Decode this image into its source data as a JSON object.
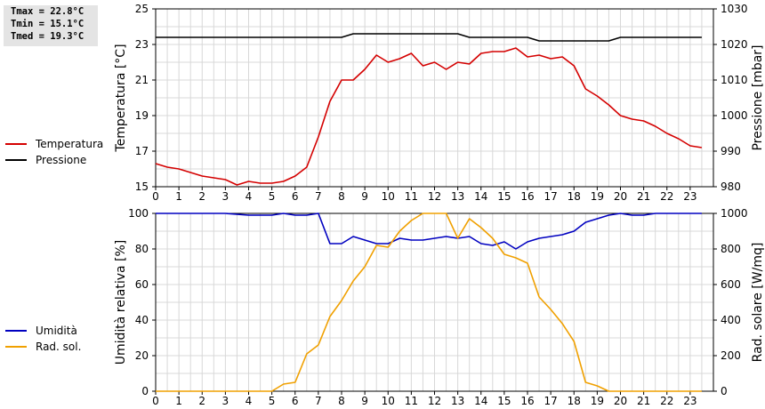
{
  "stats": {
    "tmax": "Tmax = 22.8°C",
    "tmin": "Tmin = 15.1°C",
    "tmed": "Tmed = 19.3°C"
  },
  "legend_top": [
    {
      "label": "Temperatura",
      "color": "#d40000"
    },
    {
      "label": "Pressione",
      "color": "#000000"
    }
  ],
  "legend_bottom": [
    {
      "label": "Umidità",
      "color": "#0000c0"
    },
    {
      "label": "Rad. sol.",
      "color": "#f0a000"
    }
  ],
  "chart_data": [
    {
      "type": "line",
      "xlim": [
        0,
        24
      ],
      "x_ticks": [
        0,
        1,
        2,
        3,
        4,
        5,
        6,
        7,
        8,
        9,
        10,
        11,
        12,
        13,
        14,
        15,
        16,
        17,
        18,
        19,
        20,
        21,
        22,
        23
      ],
      "grid": true,
      "ylabel_left": "Temperatura [°C]",
      "ylim_left": [
        15,
        25
      ],
      "yticks_left": [
        15,
        17,
        19,
        21,
        23,
        25
      ],
      "ylabel_right": "Pressione [mbar]",
      "ylim_right": [
        980,
        1030
      ],
      "yticks_right": [
        980,
        990,
        1000,
        1010,
        1020,
        1030
      ],
      "series": [
        {
          "name": "Temperatura",
          "axis": "left",
          "color": "#d40000",
          "x": [
            0,
            0.5,
            1,
            1.5,
            2,
            2.5,
            3,
            3.5,
            4,
            4.5,
            5,
            5.5,
            6,
            6.5,
            7,
            7.5,
            8,
            8.5,
            9,
            9.5,
            10,
            10.5,
            11,
            11.5,
            12,
            12.5,
            13,
            13.5,
            14,
            14.5,
            15,
            15.5,
            16,
            16.5,
            17,
            17.5,
            18,
            18.5,
            19,
            19.5,
            20,
            20.5,
            21,
            21.5,
            22,
            22.5,
            23,
            23.5
          ],
          "values": [
            16.3,
            16.1,
            16.0,
            15.8,
            15.6,
            15.5,
            15.4,
            15.1,
            15.3,
            15.2,
            15.2,
            15.3,
            15.6,
            16.1,
            17.8,
            19.8,
            21.0,
            21.0,
            21.6,
            22.4,
            22.0,
            22.2,
            22.5,
            21.8,
            22.0,
            21.6,
            22.0,
            21.9,
            22.5,
            22.6,
            22.6,
            22.8,
            22.3,
            22.4,
            22.2,
            22.3,
            21.8,
            20.5,
            20.1,
            19.6,
            19.0,
            18.8,
            18.7,
            18.4,
            18.0,
            17.7,
            17.3,
            17.2
          ]
        },
        {
          "name": "Pressione",
          "axis": "right",
          "color": "#000000",
          "x": [
            0,
            8,
            8.5,
            13,
            13.5,
            16,
            16.5,
            19.5,
            20,
            23.5
          ],
          "values": [
            1022,
            1022,
            1023,
            1023,
            1022,
            1022,
            1021,
            1021,
            1022,
            1022
          ]
        }
      ]
    },
    {
      "type": "line",
      "xlim": [
        0,
        24
      ],
      "x_ticks": [
        0,
        1,
        2,
        3,
        4,
        5,
        6,
        7,
        8,
        9,
        10,
        11,
        12,
        13,
        14,
        15,
        16,
        17,
        18,
        19,
        20,
        21,
        22,
        23
      ],
      "grid": true,
      "ylabel_left": "Umidità relativa [%]",
      "ylim_left": [
        0,
        100
      ],
      "yticks_left": [
        0,
        20,
        40,
        60,
        80,
        100
      ],
      "ylabel_right": "Rad. solare [W/mq]",
      "ylim_right": [
        0,
        1000
      ],
      "yticks_right": [
        0,
        200,
        400,
        600,
        800,
        1000
      ],
      "series": [
        {
          "name": "Umidità",
          "axis": "left",
          "color": "#0000c0",
          "x": [
            0,
            3,
            4,
            5,
            5.5,
            6,
            6.5,
            7,
            7.5,
            8,
            8.5,
            9,
            9.5,
            10,
            10.5,
            11,
            11.5,
            12,
            12.5,
            13,
            13.5,
            14,
            14.5,
            15,
            15.5,
            16,
            16.5,
            17,
            17.5,
            18,
            18.5,
            19,
            19.5,
            20,
            20.5,
            21,
            21.5,
            23.5
          ],
          "values": [
            100,
            100,
            99,
            99,
            100,
            99,
            99,
            100,
            83,
            83,
            87,
            85,
            83,
            83,
            86,
            85,
            85,
            86,
            87,
            86,
            87,
            83,
            82,
            84,
            80,
            84,
            86,
            87,
            88,
            90,
            95,
            97,
            99,
            100,
            99,
            99,
            100,
            100
          ]
        },
        {
          "name": "Rad. sol.",
          "axis": "right",
          "color": "#f0a000",
          "x": [
            0,
            5,
            5.5,
            6,
            6.5,
            7,
            7.5,
            8,
            8.5,
            9,
            9.5,
            10,
            10.5,
            11,
            11.5,
            12,
            12.5,
            13,
            13.5,
            14,
            14.5,
            15,
            15.5,
            16,
            16.5,
            17,
            17.5,
            18,
            18.5,
            19,
            19.5,
            20,
            23.5
          ],
          "values": [
            0,
            0,
            40,
            50,
            210,
            260,
            420,
            510,
            620,
            700,
            820,
            810,
            900,
            960,
            1000,
            1000,
            1000,
            860,
            970,
            920,
            860,
            770,
            750,
            720,
            530,
            460,
            380,
            280,
            50,
            30,
            0,
            0,
            0
          ]
        }
      ]
    }
  ]
}
